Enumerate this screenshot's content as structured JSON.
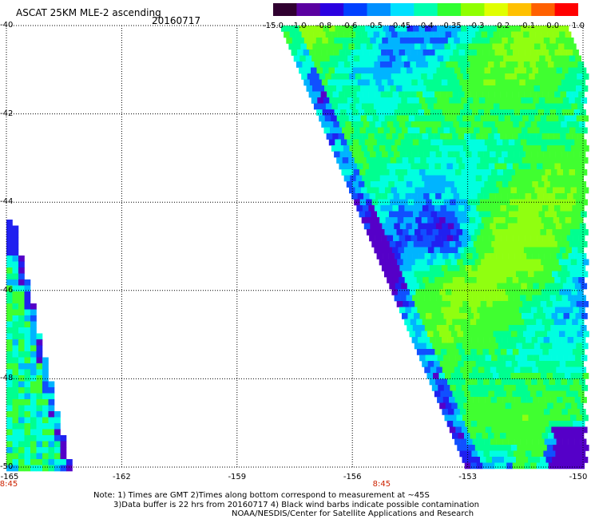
{
  "header": {
    "title": "ASCAT 25KM MLE-2 ascending",
    "date": "20160717"
  },
  "colorbar": {
    "labels": [
      "-15.0",
      "-1.0",
      "-0.8",
      "-0.6",
      "-0.5",
      "-0.45",
      "-0.4",
      "-0.35",
      "-0.3",
      "-0.2",
      "-0.1",
      "0.0",
      "1.0"
    ],
    "colors": [
      "#300030",
      "#5a00a0",
      "#2a00e0",
      "#0040ff",
      "#0090ff",
      "#00e0ff",
      "#00ffb0",
      "#30ff30",
      "#90ff00",
      "#e0ff00",
      "#ffc000",
      "#ff6000",
      "#ff0000"
    ]
  },
  "map": {
    "lon_range": [
      -165,
      -150
    ],
    "lat_range": [
      -50,
      -40
    ],
    "lon_ticks": [
      "-165",
      "-162",
      "-159",
      "-156",
      "-153",
      "-150"
    ],
    "lat_ticks": [
      "-40",
      "-42",
      "-44",
      "-46",
      "-48",
      "-50"
    ],
    "time_labels": [
      {
        "lon": -165,
        "text": "8:45"
      },
      {
        "lon": -155.3,
        "text": "8:45"
      }
    ]
  },
  "notes": {
    "line1": "Note: 1) Times are GMT 2)Times along bottom correspond to measurement at ~45S",
    "line2": "3)Data buffer is 22 hrs from 20160717 4) Black wind barbs indicate possible contamination",
    "line3": "NOAA/NESDIS/Center for Satellite Applications and Research"
  }
}
